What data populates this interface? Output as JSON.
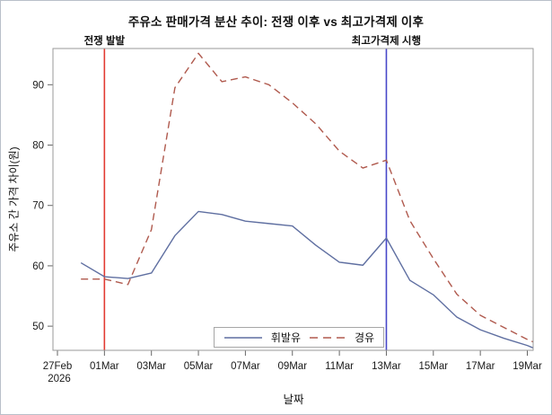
{
  "title": "주유소 판매가격 분산 추이: 전쟁 이후 vs 최고가격제 이후",
  "axes": {
    "x_label": "날짜",
    "y_label": "주유소 간 가격 차이(원)"
  },
  "chart_data": {
    "type": "line",
    "x": [
      "28Feb",
      "01Mar",
      "02Mar",
      "03Mar",
      "04Mar",
      "05Mar",
      "06Mar",
      "07Mar",
      "08Mar",
      "09Mar",
      "10Mar",
      "11Mar",
      "12Mar",
      "13Mar",
      "14Mar",
      "15Mar",
      "16Mar",
      "17Mar",
      "18Mar",
      "19Mar"
    ],
    "series": [
      {
        "name": "휘발유",
        "style": "solid",
        "color": "#5f6fa1",
        "start_day_offset": 1,
        "values": [
          60.5,
          58.2,
          57.9,
          58.8,
          65.0,
          69.0,
          68.5,
          67.4,
          67.0,
          66.6,
          63.4,
          60.6,
          60.1,
          64.6,
          57.6,
          55.2,
          51.5,
          49.4,
          48.0,
          46.8
        ],
        "edge_value": 46.4
      },
      {
        "name": "경유",
        "style": "dashed",
        "color": "#b05a4e",
        "start_day_offset": 1,
        "values": [
          57.8,
          57.8,
          56.9,
          66.0,
          89.5,
          95.2,
          90.5,
          91.3,
          90.0,
          87.0,
          83.5,
          79.0,
          76.2,
          77.5,
          67.5,
          61.2,
          55.3,
          51.8,
          49.8,
          47.8
        ],
        "edge_value": 47.4
      }
    ],
    "x_ticks": [
      "27Feb",
      "01Mar",
      "03Mar",
      "05Mar",
      "07Mar",
      "09Mar",
      "11Mar",
      "13Mar",
      "15Mar",
      "17Mar",
      "19Mar"
    ],
    "x_first_tick_sub": "2026",
    "x_tick_step_days": 2,
    "y_ticks": [
      50,
      60,
      70,
      80,
      90
    ],
    "ylim": [
      46,
      96
    ],
    "ref_lines": [
      {
        "label": "전쟁 발발",
        "x": "01Mar",
        "day_offset": 2,
        "color": "#e23a32"
      },
      {
        "label": "최고가격제 시행",
        "x": "13Mar",
        "day_offset": 14,
        "color": "#4747c8"
      }
    ],
    "grid": "off",
    "legend_position": "inside-bottom-center",
    "frame": "box"
  }
}
